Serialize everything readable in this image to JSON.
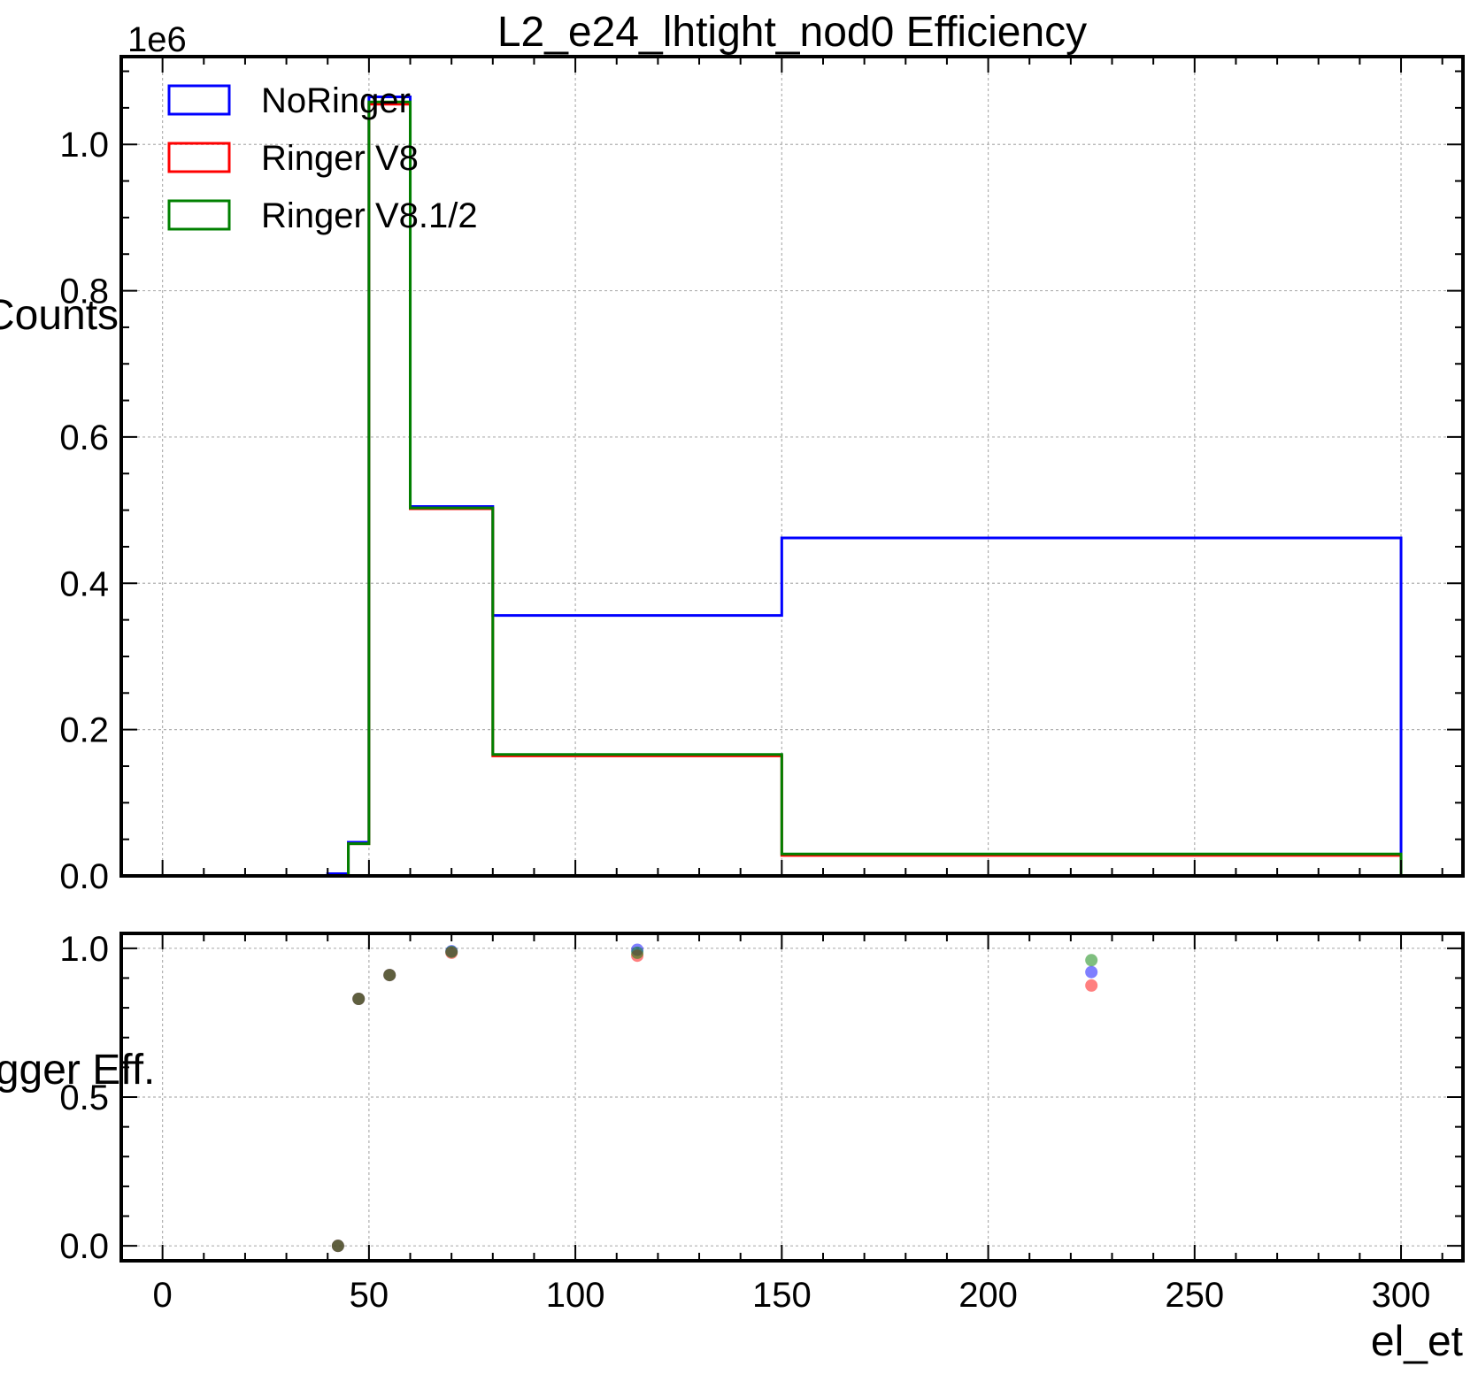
{
  "chart_data": [
    {
      "type": "histogram",
      "title": "L2_e24_lhtight_nod0 Efficiency",
      "ylabel": "Counts",
      "y_offset_label": "1e6",
      "ylim": [
        0,
        1.12
      ],
      "xlim": [
        -10,
        315
      ],
      "y_scale_note": "values in units of 1e6",
      "yticks": [
        "0.0",
        "0.2",
        "0.4",
        "0.6",
        "0.8",
        "1.0"
      ],
      "grid": true,
      "legend_position": "upper-left",
      "bin_edges": [
        40,
        45,
        50,
        60,
        80,
        150,
        300
      ],
      "series": [
        {
          "name": "NoRinger",
          "color": "#0000ff",
          "values": [
            0.003,
            0.046,
            1.065,
            0.505,
            0.356,
            0.462
          ]
        },
        {
          "name": "Ringer V8",
          "color": "#ff0000",
          "values": [
            0.0,
            0.044,
            1.055,
            0.502,
            0.164,
            0.028
          ]
        },
        {
          "name": "Ringer V8.1/2",
          "color": "#008000",
          "values": [
            0.0,
            0.044,
            1.058,
            0.503,
            0.166,
            0.03
          ]
        }
      ]
    },
    {
      "type": "scatter",
      "xlabel": "el_et",
      "ylabel": "Trigger Eff.",
      "xlim": [
        -10,
        315
      ],
      "ylim": [
        -0.05,
        1.05
      ],
      "xticks": [
        "0",
        "50",
        "100",
        "150",
        "200",
        "250",
        "300"
      ],
      "yticks": [
        "0.0",
        "0.5",
        "1.0"
      ],
      "grid": true,
      "series": [
        {
          "name": "NoRinger",
          "color": "#0000ff",
          "x": [
            42.5,
            47.5,
            55,
            70,
            115,
            225
          ],
          "y": [
            0.0,
            0.83,
            0.91,
            0.99,
            0.995,
            0.92
          ]
        },
        {
          "name": "Ringer V8",
          "color": "#ff0000",
          "x": [
            42.5,
            47.5,
            55,
            70,
            115,
            225
          ],
          "y": [
            0.0,
            0.83,
            0.91,
            0.985,
            0.975,
            0.875
          ]
        },
        {
          "name": "Ringer V8.1/2",
          "color": "#008000",
          "x": [
            42.5,
            47.5,
            55,
            70,
            115,
            225
          ],
          "y": [
            0.0,
            0.83,
            0.91,
            0.988,
            0.985,
            0.96
          ]
        }
      ]
    }
  ]
}
